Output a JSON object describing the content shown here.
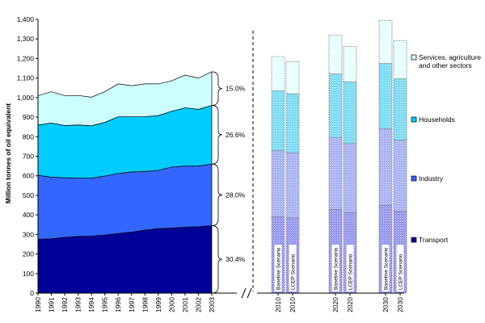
{
  "colors": {
    "transport": "#000099",
    "industry": "#3366ff",
    "households": "#00ccff",
    "services": "#ccffff",
    "bar_transport": "#9999ee",
    "bar_industry": "#aab4f4",
    "bar_households": "#7fdcf2",
    "bar_services": "#e8ffff",
    "bar_outline": "#666666",
    "axis": "#000000"
  },
  "chart_data": {
    "type": "area",
    "ylabel": "Million tonnes of oil equivalent",
    "ylim": [
      0,
      1400
    ],
    "yticks": [
      0,
      100,
      200,
      300,
      400,
      500,
      600,
      700,
      800,
      900,
      1000,
      1100,
      1200,
      1300,
      1400
    ],
    "ytick_labels": [
      "0",
      "100",
      "200",
      "300",
      "400",
      "500",
      "600",
      "700",
      "800",
      "900",
      "1,000",
      "1,100",
      "1,200",
      "1,300",
      "1,400"
    ],
    "historical": {
      "x": [
        "1990",
        "1991",
        "1992",
        "1993",
        "1994",
        "1995",
        "1996",
        "1997",
        "1998",
        "1999",
        "2000",
        "2001",
        "2002",
        "2003"
      ],
      "series": [
        {
          "name": "Transport",
          "color_key": "transport",
          "values": [
            275,
            278,
            285,
            290,
            292,
            297,
            305,
            312,
            322,
            330,
            333,
            337,
            340,
            345
          ]
        },
        {
          "name": "Industry",
          "color_key": "industry",
          "values": [
            328,
            315,
            305,
            298,
            296,
            302,
            307,
            308,
            300,
            298,
            312,
            313,
            310,
            315
          ]
        },
        {
          "name": "Households",
          "color_key": "households",
          "values": [
            257,
            277,
            267,
            272,
            268,
            274,
            290,
            282,
            280,
            280,
            285,
            298,
            290,
            300
          ]
        },
        {
          "name": "Services, agriculture and other sectors",
          "color_key": "services",
          "values": [
            150,
            160,
            153,
            151,
            146,
            157,
            168,
            159,
            168,
            162,
            156,
            167,
            160,
            172
          ]
        }
      ]
    },
    "share_labels": [
      {
        "series": "Transport",
        "label": "30.4%"
      },
      {
        "series": "Industry",
        "label": "28.0%"
      },
      {
        "series": "Households",
        "label": "26.6%"
      },
      {
        "series": "Services, agriculture and other sectors",
        "label": "15.0%"
      }
    ],
    "projections": {
      "groups": [
        {
          "bars": [
            {
              "year": "2010",
              "scenario": "Baseline Scenario",
              "values": [
                390,
                340,
                305,
                175
              ]
            },
            {
              "year": "2010",
              "scenario": "LCEP Scenario",
              "values": [
                385,
                333,
                302,
                163
              ]
            }
          ]
        },
        {
          "bars": [
            {
              "year": "2020",
              "scenario": "Baseline Scenario",
              "values": [
                428,
                368,
                325,
                199
              ]
            },
            {
              "year": "2020",
              "scenario": "LCEP Scenario",
              "values": [
                412,
                353,
                315,
                182
              ]
            }
          ]
        },
        {
          "bars": [
            {
              "year": "2030",
              "scenario": "Baseline Scenario",
              "values": [
                450,
                390,
                335,
                220
              ]
            },
            {
              "year": "2030",
              "scenario": "LCEP Scenario",
              "values": [
                418,
                365,
                313,
                196
              ]
            }
          ]
        }
      ]
    },
    "legend": [
      {
        "label_lines": [
          "Services, agriculture",
          "and other sectors"
        ],
        "color_key": "services"
      },
      {
        "label_lines": [
          "Households"
        ],
        "color_key": "households"
      },
      {
        "label_lines": [
          "Industry"
        ],
        "color_key": "industry"
      },
      {
        "label_lines": [
          "Transport"
        ],
        "color_key": "transport"
      }
    ],
    "legend_placement": "right",
    "grid": false
  }
}
